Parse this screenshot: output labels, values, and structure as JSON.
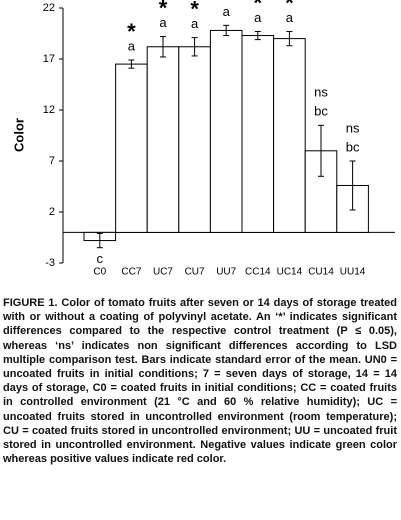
{
  "chart_data": {
    "type": "bar",
    "categories": [
      "C0",
      "CC7",
      "UC7",
      "CU7",
      "UU7",
      "CC14",
      "UC14",
      "CU14",
      "UU14"
    ],
    "values": [
      -0.8,
      16.5,
      18.2,
      18.2,
      19.8,
      19.3,
      19.0,
      8.0,
      4.6
    ],
    "errors": [
      0.7,
      0.4,
      1.0,
      0.9,
      0.5,
      0.4,
      0.7,
      2.5,
      2.4
    ],
    "significance": [
      null,
      "*",
      "*",
      "*",
      "*",
      "*",
      "*",
      "ns",
      "ns"
    ],
    "letters": [
      "c",
      "a",
      "a",
      "a",
      "a",
      "a",
      "a",
      "bc",
      "bc"
    ],
    "color": "#ffffff",
    "y_label": "Color",
    "ylim": [
      -3,
      22
    ],
    "yticks": [
      -3,
      2,
      7,
      12,
      17,
      22
    ]
  },
  "caption": {
    "label": "FIGURE 1.",
    "text": "Color of tomato fruits after seven or 14 days of storage treated with or without a coating of polyvinyl acetate. An ‘*’ indicates significant differences compared to the respective control treatment (P ≤ 0.05), whereas ‘ns’ indicates non significant differences according to LSD multiple comparison test. Bars indicate standard error of the mean. UN0 = uncoated fruits in initial conditions; 7 = seven days of storage, 14 = 14 days of storage, C0 = coated fruits in initial conditions; CC = coated fruits in controlled environment (21 °C and 60 % relative humidity); UC = uncoated fruits stored in uncontrolled environment (room temperature); CU = coated fruits stored in uncontrolled environment; UU = uncoated fruit stored in uncontrolled environment.  Negative values indicate green color whereas positive values indicate red color."
  }
}
